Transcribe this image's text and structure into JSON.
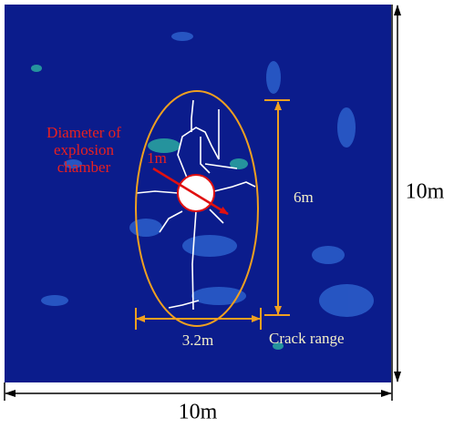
{
  "chamber_label": [
    "Diameter of",
    "explosion",
    "chamber"
  ],
  "diameter": "1m",
  "crack_height": "6m",
  "crack_width": "3.2m",
  "crack_range": "Crack range",
  "model_height": "10m",
  "model_width": "10m"
}
